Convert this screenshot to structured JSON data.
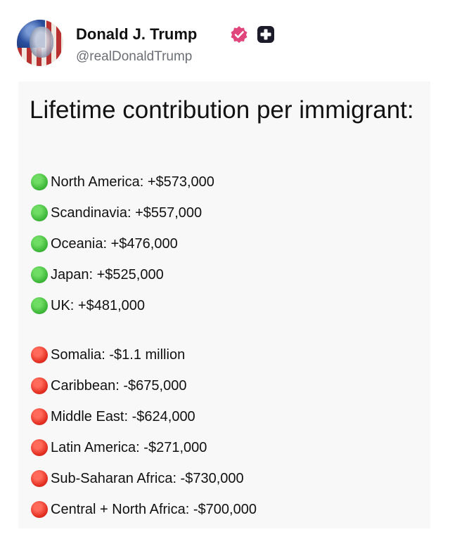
{
  "post": {
    "author_name": "Donald J. Trump",
    "handle": "@realDonaldTrump",
    "verified_icon": "verified-badge-icon",
    "extra_icon": "plus-icon",
    "colors": {
      "verified": "#e0457b",
      "plus_bg": "#1b1b2a"
    }
  },
  "card": {
    "title": "Lifetime contribution per immigrant:",
    "positive": [
      {
        "text": "North America: +$573,000",
        "status": "green"
      },
      {
        "text": "Scandinavia: +$557,000",
        "status": "green"
      },
      {
        "text": "Oceania: +$476,000",
        "status": "green"
      },
      {
        "text": "Japan: +$525,000",
        "status": "green"
      },
      {
        "text": "UK: +$481,000",
        "status": "green"
      }
    ],
    "negative": [
      {
        "text": "Somalia: -$1.1 million",
        "status": "red"
      },
      {
        "text": "Caribbean: -$675,000",
        "status": "red"
      },
      {
        "text": "Middle East: -$624,000",
        "status": "red"
      },
      {
        "text": "Latin America: -$271,000",
        "status": "red"
      },
      {
        "text": "Sub-Saharan Africa: -$730,000",
        "status": "red"
      },
      {
        "text": "Central + North Africa: -$700,000",
        "status": "red"
      }
    ]
  }
}
